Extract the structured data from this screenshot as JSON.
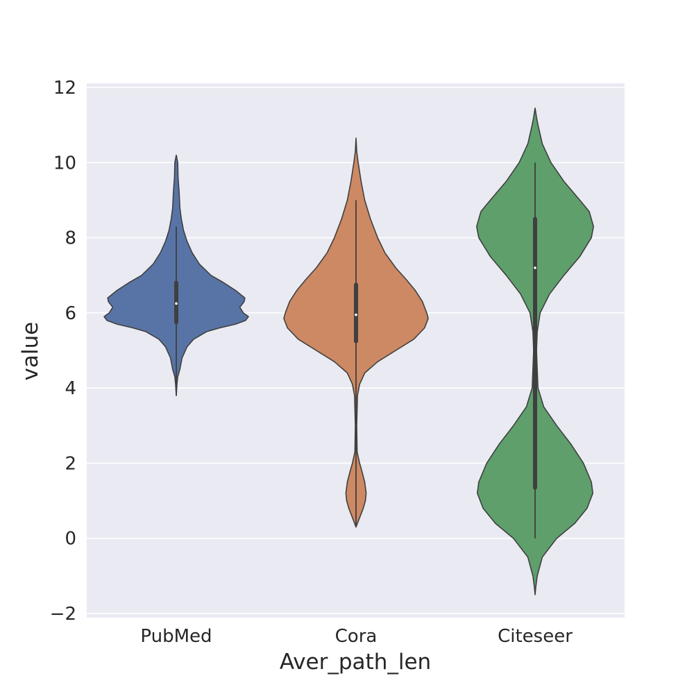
{
  "chart_data": {
    "type": "violin",
    "title": "",
    "xlabel": "Aver_path_len",
    "ylabel": "value",
    "ylim": [
      -2.1,
      12.2
    ],
    "yticks": [
      -2,
      0,
      2,
      4,
      6,
      8,
      10,
      12
    ],
    "ytick_labels": [
      "−2",
      "0",
      "2",
      "4",
      "6",
      "8",
      "10",
      "12"
    ],
    "grid": true,
    "categories": [
      "PubMed",
      "Cora",
      "Citeseer"
    ],
    "colors": [
      "#5874a6",
      "#cd8963",
      "#5e9f6c"
    ],
    "series": [
      {
        "category": "PubMed",
        "color": "#5874a6",
        "box": {
          "whisker_low": 3.8,
          "q1": 5.75,
          "median": 6.25,
          "q3": 6.8,
          "whisker_high": 8.3
        },
        "density": [
          [
            10.2,
            0.0
          ],
          [
            10.0,
            0.02
          ],
          [
            9.6,
            0.025
          ],
          [
            9.2,
            0.04
          ],
          [
            8.8,
            0.05
          ],
          [
            8.5,
            0.07
          ],
          [
            8.2,
            0.1
          ],
          [
            7.9,
            0.15
          ],
          [
            7.6,
            0.22
          ],
          [
            7.3,
            0.32
          ],
          [
            7.0,
            0.48
          ],
          [
            6.8,
            0.66
          ],
          [
            6.6,
            0.82
          ],
          [
            6.4,
            0.95
          ],
          [
            6.3,
            0.94
          ],
          [
            6.15,
            0.88
          ],
          [
            6.0,
            0.93
          ],
          [
            5.9,
            1.0
          ],
          [
            5.8,
            0.96
          ],
          [
            5.7,
            0.82
          ],
          [
            5.6,
            0.6
          ],
          [
            5.5,
            0.42
          ],
          [
            5.3,
            0.24
          ],
          [
            5.1,
            0.15
          ],
          [
            4.8,
            0.08
          ],
          [
            4.5,
            0.05
          ],
          [
            4.3,
            0.02
          ],
          [
            4.1,
            0.01
          ],
          [
            3.8,
            0.0
          ]
        ]
      },
      {
        "category": "Cora",
        "color": "#cd8963",
        "box": {
          "whisker_low": 0.3,
          "q1": 5.25,
          "median": 5.95,
          "q3": 6.75,
          "whisker_high": 9.0
        },
        "density": [
          [
            10.65,
            0.0
          ],
          [
            10.3,
            0.01
          ],
          [
            10.0,
            0.03
          ],
          [
            9.5,
            0.07
          ],
          [
            9.0,
            0.12
          ],
          [
            8.5,
            0.2
          ],
          [
            8.0,
            0.3
          ],
          [
            7.6,
            0.4
          ],
          [
            7.2,
            0.55
          ],
          [
            6.9,
            0.69
          ],
          [
            6.6,
            0.82
          ],
          [
            6.3,
            0.92
          ],
          [
            6.0,
            0.98
          ],
          [
            5.85,
            1.0
          ],
          [
            5.6,
            0.95
          ],
          [
            5.3,
            0.8
          ],
          [
            5.0,
            0.55
          ],
          [
            4.7,
            0.3
          ],
          [
            4.4,
            0.12
          ],
          [
            4.1,
            0.05
          ],
          [
            3.8,
            0.02
          ],
          [
            3.0,
            0.01
          ],
          [
            2.3,
            0.015
          ],
          [
            2.0,
            0.05
          ],
          [
            1.8,
            0.08
          ],
          [
            1.5,
            0.12
          ],
          [
            1.2,
            0.14
          ],
          [
            1.0,
            0.13
          ],
          [
            0.8,
            0.1
          ],
          [
            0.55,
            0.05
          ],
          [
            0.3,
            0.0
          ]
        ]
      },
      {
        "category": "Citeseer",
        "color": "#5e9f6c",
        "box": {
          "whisker_low": 0.0,
          "q1": 1.35,
          "median": 7.2,
          "q3": 8.5,
          "whisker_high": 10.0
        },
        "density": [
          [
            11.45,
            0.0
          ],
          [
            11.2,
            0.02
          ],
          [
            11.0,
            0.04
          ],
          [
            10.5,
            0.1
          ],
          [
            10.0,
            0.22
          ],
          [
            9.5,
            0.4
          ],
          [
            9.0,
            0.62
          ],
          [
            8.7,
            0.75
          ],
          [
            8.3,
            0.81
          ],
          [
            8.0,
            0.78
          ],
          [
            7.5,
            0.62
          ],
          [
            7.0,
            0.4
          ],
          [
            6.5,
            0.2
          ],
          [
            6.0,
            0.07
          ],
          [
            5.5,
            0.03
          ],
          [
            5.0,
            0.02
          ],
          [
            4.5,
            0.03
          ],
          [
            4.0,
            0.04
          ],
          [
            3.5,
            0.12
          ],
          [
            3.0,
            0.3
          ],
          [
            2.5,
            0.5
          ],
          [
            2.0,
            0.67
          ],
          [
            1.5,
            0.78
          ],
          [
            1.2,
            0.8
          ],
          [
            0.8,
            0.72
          ],
          [
            0.4,
            0.55
          ],
          [
            0.0,
            0.3
          ],
          [
            -0.5,
            0.1
          ],
          [
            -1.0,
            0.03
          ],
          [
            -1.3,
            0.01
          ],
          [
            -1.5,
            0.0
          ]
        ]
      }
    ]
  }
}
